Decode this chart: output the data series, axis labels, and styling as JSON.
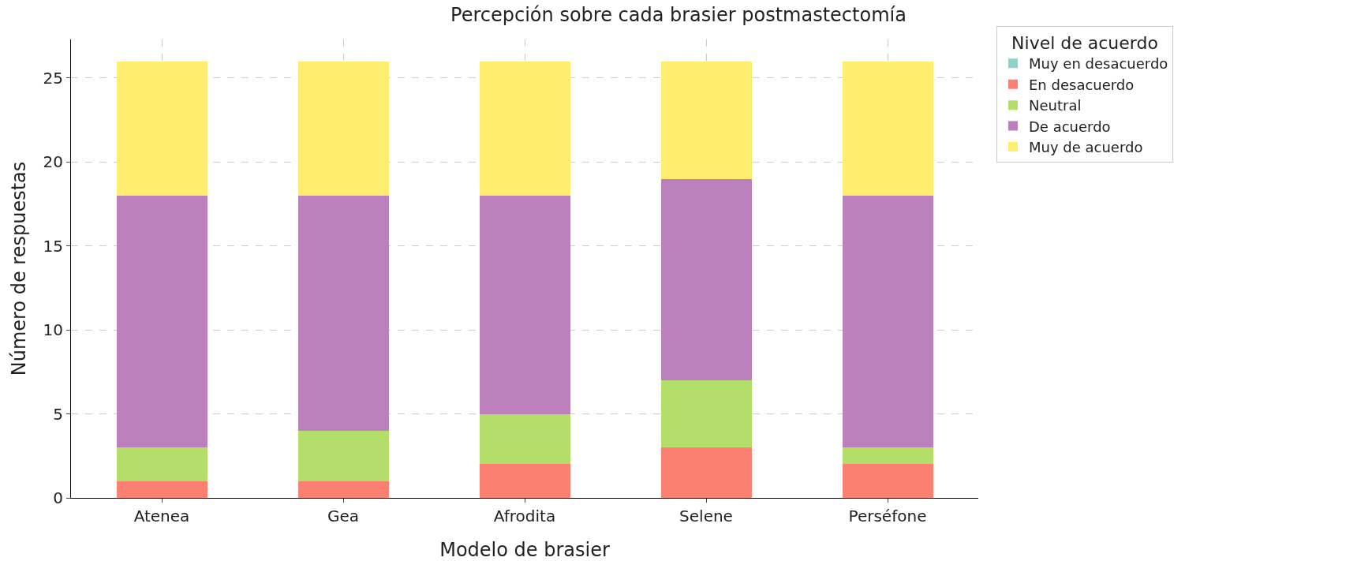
{
  "chart_data": {
    "type": "bar",
    "stacked": true,
    "title": "Percepción sobre cada brasier postmastectomía",
    "xlabel": "Modelo de brasier",
    "ylabel": "Número de respuestas",
    "legend_title": "Nivel de acuerdo",
    "categories": [
      "Atenea",
      "Gea",
      "Afrodita",
      "Selene",
      "Perséfone"
    ],
    "series": [
      {
        "name": "Muy en desacuerdo",
        "color": "#8dd3c7",
        "values": [
          0,
          0,
          0,
          0,
          0
        ]
      },
      {
        "name": "En desacuerdo",
        "color": "#fb8072",
        "values": [
          1,
          1,
          2,
          3,
          2
        ]
      },
      {
        "name": "Neutral",
        "color": "#b3de69",
        "values": [
          2,
          3,
          3,
          4,
          1
        ]
      },
      {
        "name": "De acuerdo",
        "color": "#bc80bd",
        "values": [
          15,
          14,
          13,
          12,
          15
        ]
      },
      {
        "name": "Muy de acuerdo",
        "color": "#ffed6f",
        "values": [
          8,
          8,
          8,
          7,
          8
        ]
      }
    ],
    "ylim": [
      0,
      27.3
    ],
    "yticks": [
      0,
      5,
      10,
      15,
      20,
      25
    ],
    "grid": true,
    "legend": "top right"
  }
}
